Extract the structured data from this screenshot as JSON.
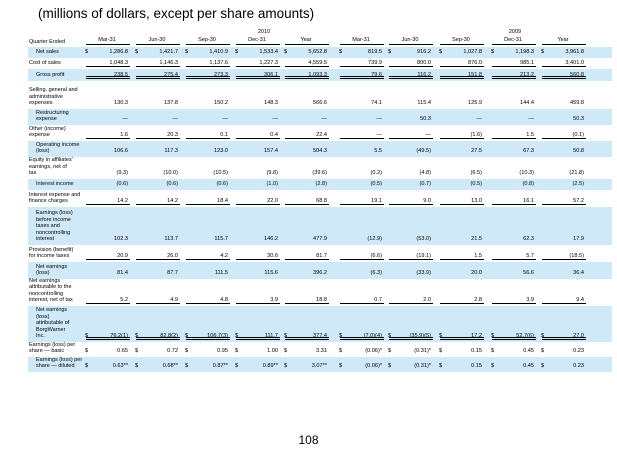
{
  "heading": "(millions of dollars, except per share amounts)",
  "page_number": "108",
  "table": {
    "quarter_ended_label": "Quarter Ended",
    "year_groups": [
      "2010",
      "2009"
    ],
    "columns": [
      "Mar-31",
      "Jun-30",
      "Sep-30",
      "Dec-31",
      "Year",
      "Mar-31",
      "Jun-30",
      "Sep-30",
      "Dec-31",
      "Year"
    ],
    "dollar_sign": "$",
    "rows": [
      {
        "label": "Net sales",
        "values": [
          "1,286.8",
          "1,421.7",
          "1,410.9",
          "1,533.4",
          "5,652.8",
          "819.5",
          "916.2",
          "1,027.8",
          "1,198.3",
          "3,961.8"
        ]
      },
      {
        "label": "Cost of sales",
        "values": [
          "1,048.3",
          "1,146.3",
          "1,137.6",
          "1,227.3",
          "4,559.5",
          "739.9",
          "800.0",
          "876.0",
          "985.1",
          "3,401.0"
        ]
      },
      {
        "label": "Gross profit",
        "values": [
          "238.5",
          "275.4",
          "273.3",
          "306.1",
          "1,093.3",
          "79.6",
          "116.2",
          "151.8",
          "213.2",
          "560.8"
        ]
      },
      {
        "label": "Selling, general and\nadministrative\nexpenses",
        "values": [
          "130.3",
          "137.8",
          "150.2",
          "148.3",
          "566.6",
          "74.1",
          "115.4",
          "125.9",
          "144.4",
          "459.8"
        ]
      },
      {
        "label": "Restructuring\nexpense",
        "values": [
          "—",
          "—",
          "—",
          "—",
          "—",
          "—",
          "50.3",
          "—",
          "—",
          "50.3"
        ]
      },
      {
        "label": "Other (income)\nexpense",
        "values": [
          "1.6",
          "20.3",
          "0.1",
          "0.4",
          "22.4",
          "—",
          "—",
          "(1.6)",
          "1.5",
          "(0.1)"
        ]
      },
      {
        "label": "Operating income\n(loss)",
        "values": [
          "106.6",
          "117.3",
          "123.0",
          "157.4",
          "504.3",
          "5.5",
          "(49.5)",
          "27.5",
          "67.3",
          "50.8"
        ]
      },
      {
        "label": "Equity in affiliates'\nearnings, net of\ntax",
        "values": [
          "(9.3)",
          "(10.0)",
          "(10.5)",
          "(9.8)",
          "(39.6)",
          "(0.2)",
          "(4.8)",
          "(6.5)",
          "(10.3)",
          "(21.8)"
        ]
      },
      {
        "label": "Interest income",
        "values": [
          "(0.6)",
          "(0.6)",
          "(0.6)",
          "(1.0)",
          "(2.8)",
          "(0.5)",
          "(0.7)",
          "(0.5)",
          "(0.8)",
          "(2.5)"
        ]
      },
      {
        "label": "Interest expense and\nfinance charges",
        "values": [
          "14.2",
          "14.2",
          "18.4",
          "22.0",
          "68.8",
          "19.1",
          "9.0",
          "13.0",
          "16.1",
          "57.2"
        ]
      },
      {
        "label": "Earnings (loss)\nbefore income\ntaxes and\nnoncontrolling\ninterest",
        "values": [
          "102.3",
          "113.7",
          "115.7",
          "146.2",
          "477.9",
          "(12.9)",
          "(53.0)",
          "21.5",
          "62.3",
          "17.9"
        ]
      },
      {
        "label": "Provision (benefit)\nfor income taxes",
        "values": [
          "20.9",
          "26.0",
          "4.2",
          "30.6",
          "81.7",
          "(6.6)",
          "(19.1)",
          "1.5",
          "5.7",
          "(18.5)"
        ]
      },
      {
        "label": "Net earnings\n(loss)",
        "values": [
          "81.4",
          "87.7",
          "111.5",
          "115.6",
          "396.2",
          "(6.3)",
          "(33.9)",
          "20.0",
          "56.6",
          "36.4"
        ]
      },
      {
        "label": "Net earnings\nattributable to the\nnoncontrolling\ninterest, net of tax",
        "values": [
          "5.2",
          "4.9",
          "4.8",
          "3.9",
          "18.8",
          "0.7",
          "2.0",
          "2.8",
          "3.9",
          "9.4"
        ]
      },
      {
        "label": "Net earnings\n(loss)\nattributable of\nBorgWarner\nInc.",
        "values": [
          "76.2(1)",
          "82.8(2)",
          "106.7(3)",
          "111.7",
          "377.4",
          "(7.0)(4)",
          "(35.9)(5)",
          "17.2",
          "52.7(6)",
          "27.0"
        ]
      },
      {
        "label": "Earnings (loss) per\nshare — basic",
        "values": [
          "0.65",
          "0.72",
          "0.95",
          "1.00",
          "3.31",
          "(0.06)*",
          "(0.31)*",
          "0.15",
          "0.45",
          "0.23"
        ]
      },
      {
        "label": "Earnings (loss) per\nshare — diluted",
        "values": [
          "0.63**",
          "0.68**",
          "0.87**",
          "0.89**",
          "3.07**",
          "(0.06)*",
          "(0.31)*",
          "0.15",
          "0.45",
          "0.23"
        ]
      }
    ]
  }
}
